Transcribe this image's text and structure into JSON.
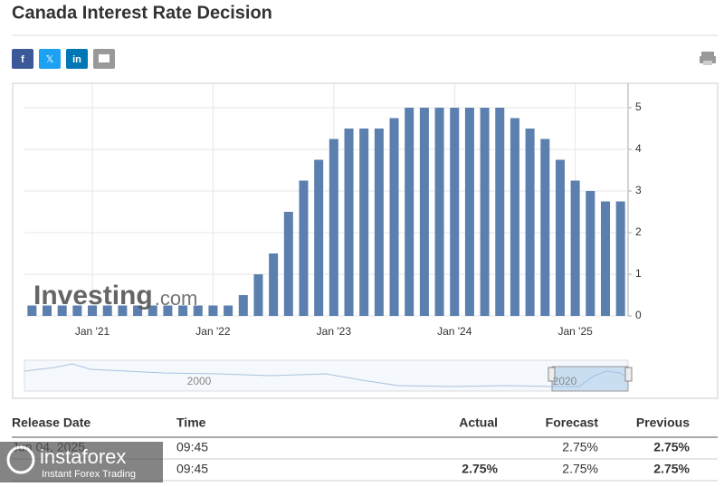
{
  "header": {
    "title": "Canada Interest Rate Decision"
  },
  "chart_data": {
    "type": "bar",
    "brand": [
      "Investing",
      ".com"
    ],
    "categories": [
      null,
      null,
      null,
      null,
      "Jan '21",
      null,
      null,
      null,
      null,
      null,
      null,
      null,
      "Jan '22",
      null,
      null,
      null,
      null,
      null,
      null,
      null,
      "Jan '23",
      null,
      null,
      null,
      null,
      null,
      null,
      null,
      "Jan '24",
      null,
      null,
      null,
      null,
      null,
      null,
      null,
      "Jan '25",
      null,
      null,
      null
    ],
    "values": [
      0.25,
      0.25,
      0.25,
      0.25,
      0.25,
      0.25,
      0.25,
      0.25,
      0.25,
      0.25,
      0.25,
      0.25,
      0.25,
      0.25,
      0.5,
      1,
      1.5,
      2.5,
      3.25,
      3.75,
      4.25,
      4.5,
      4.5,
      4.5,
      4.75,
      5,
      5,
      5,
      5,
      5,
      5,
      5,
      4.75,
      4.5,
      4.25,
      3.75,
      3.25,
      3,
      2.75,
      2.75
    ],
    "color": "#5b7fae",
    "ylim": [
      0,
      5.5
    ],
    "yticks": [
      0,
      1,
      2,
      3,
      4,
      5
    ],
    "grid": true,
    "y_axis_side": "right",
    "navigator": {
      "labels": [
        "2000",
        "2020"
      ]
    }
  },
  "table": {
    "columns": [
      "Release Date",
      "Time",
      "Actual",
      "Forecast",
      "Previous"
    ],
    "rows": [
      [
        "Jun 04, 2025",
        "09:45",
        null,
        "2.75%",
        "2.75%"
      ],
      [
        null,
        "09:45",
        "2.75%",
        "2.75%",
        "2.75%"
      ]
    ]
  },
  "watermark": {
    "brand": "instaforex",
    "tagline": "Instant Forex Trading"
  }
}
